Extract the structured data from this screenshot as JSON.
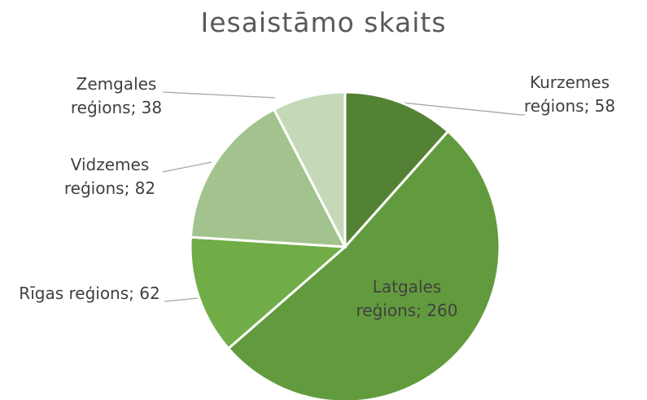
{
  "chart_data": {
    "type": "pie",
    "title": "Iesaistāmo skaits",
    "values": [
      58,
      260,
      62,
      82,
      38
    ],
    "value_labels": [
      "Kurzemes reģions; 58",
      "Latgales reģions; 260",
      "Rīgas reģions; 62",
      "Vidzemes reģions; 82",
      "Zemgales reģions; 38"
    ],
    "colors": [
      "#548235",
      "#629b3d",
      "#70ad47",
      "#a2c38d",
      "#c5d9b9"
    ]
  }
}
